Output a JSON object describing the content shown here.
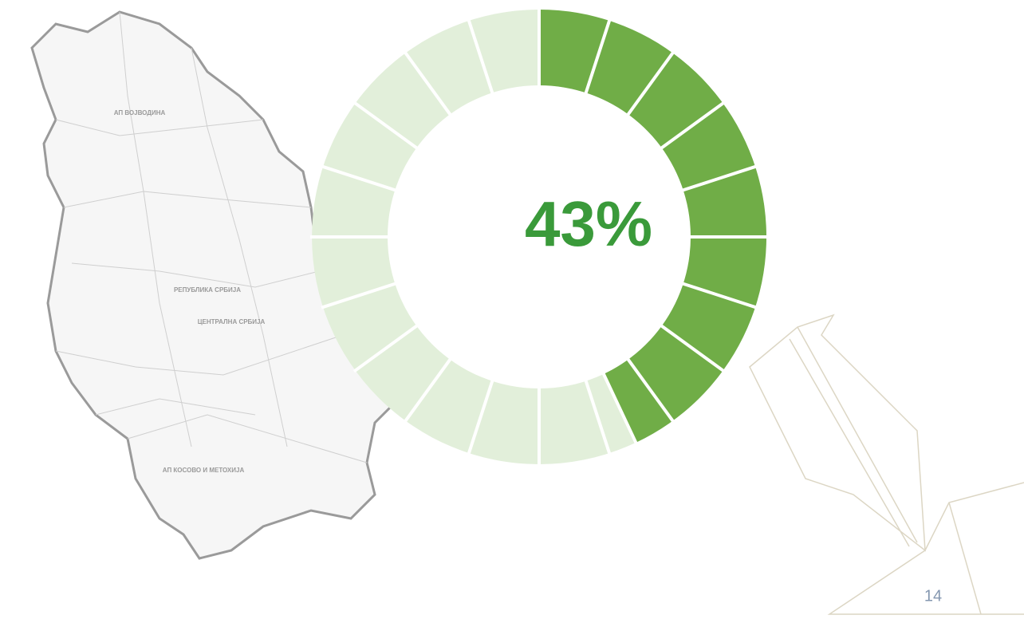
{
  "chart_data": {
    "type": "donut",
    "values": [
      43
    ],
    "value_labels": [
      "43%"
    ],
    "color": "#70ad47",
    "track_color": "#e2efda",
    "label_color": "#3a9a3a"
  },
  "map_labels": [
    "АП ВОЈВОДИНА",
    "РЕПУБЛИКА СРБИЈА",
    "ЦЕНТРАЛНА СРБИЈА",
    "АП КОСОВО И МЕТОХИЈА"
  ],
  "page_number": "14"
}
